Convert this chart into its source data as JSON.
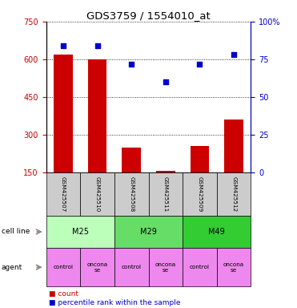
{
  "title": "GDS3759 / 1554010_at",
  "samples": [
    "GSM425507",
    "GSM425510",
    "GSM425508",
    "GSM425511",
    "GSM425509",
    "GSM425512"
  ],
  "counts": [
    620,
    600,
    250,
    155,
    255,
    360
  ],
  "percentiles": [
    84,
    84,
    72,
    60,
    72,
    78
  ],
  "ylim_left": [
    150,
    750
  ],
  "ylim_right": [
    0,
    100
  ],
  "yticks_left": [
    150,
    300,
    450,
    600,
    750
  ],
  "yticks_right": [
    0,
    25,
    50,
    75,
    100
  ],
  "ytick_labels_right": [
    "0",
    "25",
    "50",
    "75",
    "100%"
  ],
  "bar_color": "#cc0000",
  "dot_color": "#0000cc",
  "cell_lines": [
    {
      "label": "M25",
      "cols": [
        0,
        1
      ],
      "color": "#bbffbb"
    },
    {
      "label": "M29",
      "cols": [
        2,
        3
      ],
      "color": "#66dd66"
    },
    {
      "label": "M49",
      "cols": [
        4,
        5
      ],
      "color": "#33cc33"
    }
  ],
  "agents": [
    {
      "label": "control",
      "color": "#ee88ee"
    },
    {
      "label": "oncona\nse",
      "color": "#ee88ee"
    },
    {
      "label": "control",
      "color": "#ee88ee"
    },
    {
      "label": "oncona\nse",
      "color": "#ee88ee"
    },
    {
      "label": "control",
      "color": "#ee88ee"
    },
    {
      "label": "oncona\nse",
      "color": "#ee88ee"
    }
  ],
  "legend_items": [
    {
      "color": "#cc0000",
      "label": "count"
    },
    {
      "color": "#0000cc",
      "label": "percentile rank within the sample"
    }
  ],
  "left_tick_color": "#cc0000",
  "right_tick_color": "#0000cc",
  "sample_box_color": "#cccccc",
  "arrow_label_cell": "cell line",
  "arrow_label_agent": "agent"
}
